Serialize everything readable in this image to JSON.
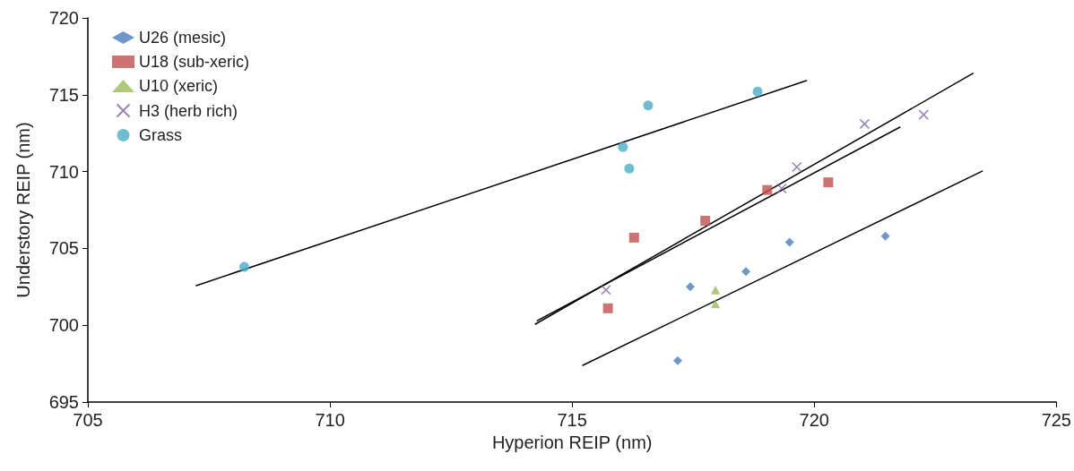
{
  "chart_data": {
    "type": "scatter",
    "xlabel": "Hyperion REIP (nm)",
    "ylabel": "Understory REIP (nm)",
    "xlim": [
      705,
      725
    ],
    "ylim": [
      695,
      720
    ],
    "xticks": [
      705,
      710,
      715,
      720,
      725
    ],
    "yticks": [
      695,
      700,
      705,
      710,
      715,
      720
    ],
    "grid": false,
    "legend": "top left",
    "series": [
      {
        "name": "U26 (mesic)",
        "color": "#4a7ebb",
        "marker": "diamond",
        "x": [
          717.18,
          717.44,
          718.59,
          719.49,
          721.47
        ],
        "values": [
          697.7,
          702.5,
          703.5,
          705.4,
          705.8
        ]
      },
      {
        "name": "U18 (sub-xeric)",
        "color": "#c0504d",
        "marker": "square",
        "x": [
          715.74,
          716.28,
          717.75,
          719.03,
          720.29
        ],
        "values": [
          701.1,
          705.7,
          706.8,
          708.8,
          709.3
        ]
      },
      {
        "name": "U10 (xeric)",
        "color": "#9bbb59",
        "marker": "triangle",
        "x": [
          717.96,
          717.96
        ],
        "values": [
          702.3,
          701.4
        ]
      },
      {
        "name": "H3 (herb rich)",
        "color": "#8064a2",
        "marker": "cross",
        "x": [
          715.7,
          719.33,
          719.64,
          721.04,
          722.26
        ],
        "values": [
          702.3,
          708.9,
          710.3,
          713.1,
          713.7
        ]
      },
      {
        "name": "Grass",
        "color": "#4bacc6",
        "marker": "circle",
        "x": [
          708.23,
          716.05,
          716.18,
          716.57,
          718.83
        ],
        "values": [
          703.8,
          711.6,
          710.2,
          714.3,
          715.2
        ]
      },
      {
        "type": "line",
        "color": "#000000",
        "marker": "none",
        "x": [
          707.24,
          719.84
        ],
        "values": [
          702.58,
          715.92
        ]
      },
      {
        "type": "line",
        "color": "#000000",
        "marker": "none",
        "x": [
          714.24,
          723.28
        ],
        "values": [
          700.07,
          716.39
        ]
      },
      {
        "type": "line",
        "color": "#000000",
        "marker": "none",
        "x": [
          714.28,
          721.77
        ],
        "values": [
          700.3,
          712.89
        ]
      },
      {
        "type": "line",
        "color": "#000000",
        "marker": "none",
        "x": [
          715.22,
          723.47
        ],
        "values": [
          697.39,
          710.03
        ]
      }
    ]
  }
}
